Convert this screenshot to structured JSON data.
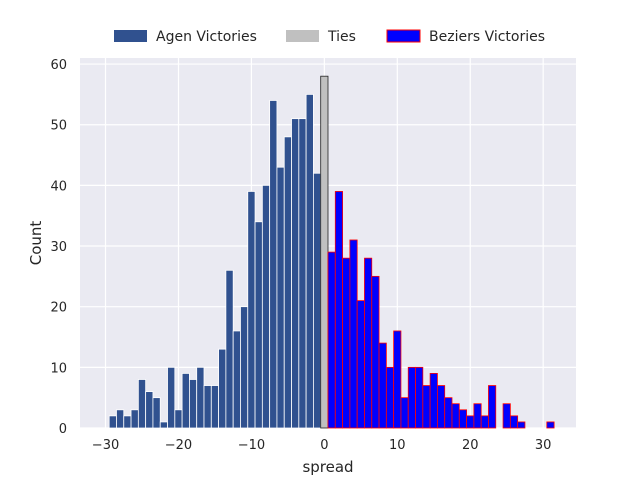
{
  "chart_data": {
    "type": "bar",
    "xlabel": "spread",
    "ylabel": "Count",
    "xlim": [
      -33.5,
      34.5
    ],
    "ylim": [
      0,
      61
    ],
    "bin_width": 1,
    "grid": true,
    "legend_position": "top-center, above plot",
    "x_ticks": [
      -30,
      -20,
      -10,
      0,
      10,
      20,
      30
    ],
    "y_ticks": [
      0,
      10,
      20,
      30,
      40,
      50,
      60
    ],
    "series": [
      {
        "name": "Agen Victories",
        "color": "#30518f",
        "edge": "#ffffff",
        "x": [
          -29,
          -28,
          -27,
          -26,
          -25,
          -24,
          -23,
          -22,
          -21,
          -20,
          -19,
          -18,
          -17,
          -16,
          -15,
          -14,
          -13,
          -12,
          -11,
          -10,
          -9,
          -8,
          -7,
          -6,
          -5,
          -4,
          -3,
          -2,
          -1
        ],
        "values": [
          2,
          3,
          2,
          3,
          8,
          6,
          5,
          1,
          10,
          3,
          9,
          8,
          10,
          7,
          7,
          13,
          26,
          16,
          20,
          39,
          34,
          40,
          54,
          43,
          48,
          51,
          51,
          55,
          42
        ]
      },
      {
        "name": "Ties",
        "color": "#c0c0c0",
        "edge": "#222222",
        "x": [
          0
        ],
        "values": [
          58
        ]
      },
      {
        "name": "Beziers Victories",
        "color": "#0000ff",
        "edge": "#ff0000",
        "x": [
          1,
          2,
          3,
          4,
          5,
          6,
          7,
          8,
          9,
          10,
          11,
          12,
          13,
          14,
          15,
          16,
          17,
          18,
          19,
          20,
          21,
          22,
          23,
          24,
          25,
          26,
          27,
          28,
          29,
          30,
          31
        ],
        "values": [
          29,
          39,
          28,
          31,
          21,
          28,
          25,
          14,
          10,
          16,
          5,
          10,
          10,
          7,
          9,
          7,
          5,
          4,
          3,
          2,
          4,
          2,
          7,
          0,
          4,
          2,
          1,
          0,
          0,
          0,
          1
        ]
      }
    ]
  }
}
